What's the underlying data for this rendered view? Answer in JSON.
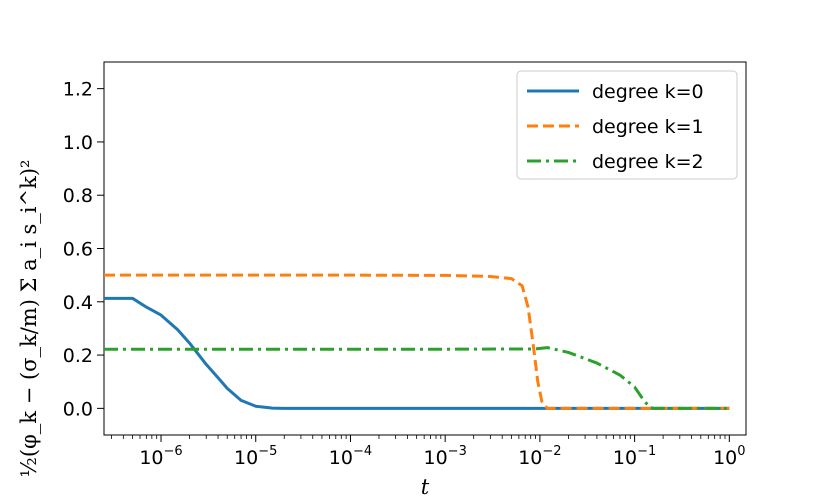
{
  "chart_data": {
    "type": "line",
    "xscale": "log",
    "xlabel": "t",
    "ylabel": "½(φ_k − (σ_k/m) Σ a_i s_i^k)²",
    "xlim": [
      2.5e-07,
      1.5
    ],
    "ylim": [
      -0.1,
      1.3
    ],
    "grid": false,
    "legend_position": "top-right",
    "xticks": [
      {
        "value": 1e-06,
        "base": "10",
        "exp": "−6"
      },
      {
        "value": 1e-05,
        "base": "10",
        "exp": "−5"
      },
      {
        "value": 0.0001,
        "base": "10",
        "exp": "−4"
      },
      {
        "value": 0.001,
        "base": "10",
        "exp": "−3"
      },
      {
        "value": 0.01,
        "base": "10",
        "exp": "−2"
      },
      {
        "value": 0.1,
        "base": "10",
        "exp": "−1"
      },
      {
        "value": 1,
        "base": "10",
        "exp": "0"
      }
    ],
    "yticks": [
      {
        "value": 0.0,
        "label": "0.0"
      },
      {
        "value": 0.2,
        "label": "0.2"
      },
      {
        "value": 0.4,
        "label": "0.4"
      },
      {
        "value": 0.6,
        "label": "0.6"
      },
      {
        "value": 0.8,
        "label": "0.8"
      },
      {
        "value": 1.0,
        "label": "1.0"
      },
      {
        "value": 1.2,
        "label": "1.2"
      }
    ],
    "series": [
      {
        "name": "degree k=0",
        "color": "#1f77b4",
        "dash": "solid",
        "points": [
          [
            2.5e-07,
            0.413
          ],
          [
            5e-07,
            0.413
          ],
          [
            7e-07,
            0.38
          ],
          [
            1e-06,
            0.35
          ],
          [
            1.5e-06,
            0.295
          ],
          [
            2e-06,
            0.245
          ],
          [
            3e-06,
            0.165
          ],
          [
            4e-06,
            0.115
          ],
          [
            5e-06,
            0.075
          ],
          [
            7e-06,
            0.03
          ],
          [
            1e-05,
            0.008
          ],
          [
            1.5e-05,
            0.001
          ],
          [
            2e-05,
            0.0
          ],
          [
            0.0001,
            0.0
          ],
          [
            0.001,
            0.0
          ],
          [
            0.01,
            0.0
          ],
          [
            0.1,
            0.0
          ],
          [
            1.0,
            0.0
          ]
        ]
      },
      {
        "name": "degree k=1",
        "color": "#ff7f0e",
        "dash": "dashed",
        "points": [
          [
            2.5e-07,
            0.5
          ],
          [
            1e-05,
            0.5
          ],
          [
            0.0001,
            0.5
          ],
          [
            0.001,
            0.499
          ],
          [
            0.003,
            0.495
          ],
          [
            0.005,
            0.487
          ],
          [
            0.0065,
            0.46
          ],
          [
            0.0075,
            0.38
          ],
          [
            0.0085,
            0.24
          ],
          [
            0.0095,
            0.1
          ],
          [
            0.0105,
            0.025
          ],
          [
            0.012,
            0.0
          ],
          [
            0.1,
            0.0
          ],
          [
            1.0,
            0.0
          ]
        ]
      },
      {
        "name": "degree k=2",
        "color": "#2ca02c",
        "dash": "dashdot",
        "points": [
          [
            2.5e-07,
            0.222
          ],
          [
            1e-05,
            0.222
          ],
          [
            0.0001,
            0.222
          ],
          [
            0.001,
            0.222
          ],
          [
            0.009,
            0.223
          ],
          [
            0.012,
            0.228
          ],
          [
            0.02,
            0.21
          ],
          [
            0.04,
            0.17
          ],
          [
            0.07,
            0.125
          ],
          [
            0.1,
            0.08
          ],
          [
            0.125,
            0.03
          ],
          [
            0.145,
            0.003
          ],
          [
            0.16,
            0.0
          ],
          [
            1.0,
            0.0
          ]
        ]
      }
    ]
  }
}
